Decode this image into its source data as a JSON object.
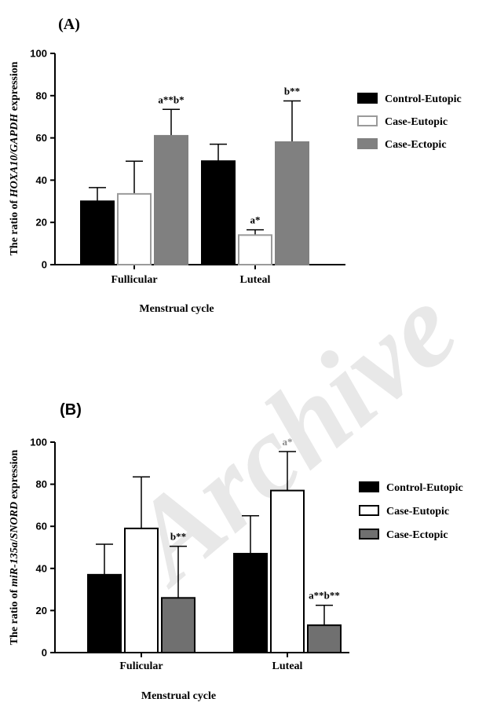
{
  "watermark": "Archive",
  "chart_data": [
    {
      "type": "bar",
      "panel_label": "(A)",
      "categories": [
        "Fullicular",
        "Luteal"
      ],
      "xlabel": "Menstrual cycle",
      "ylabel_parts": [
        "The ratio of ",
        "HOXA10/GAPDH",
        " expression"
      ],
      "ylim": [
        0,
        100
      ],
      "yticks": [
        0,
        20,
        40,
        60,
        80,
        100
      ],
      "legend_position": "right",
      "series": [
        {
          "name": "Control-Eutopic",
          "values": [
            30,
            49
          ],
          "errors": [
            6.5,
            8
          ],
          "fill": "#000000",
          "stroke": "#000000"
        },
        {
          "name": "Case-Eutopic",
          "values": [
            33.5,
            14
          ],
          "errors": [
            15.5,
            2.5
          ],
          "fill": "#ffffff",
          "stroke": "#9a9a9a"
        },
        {
          "name": "Case-Ectopic",
          "values": [
            61,
            58
          ],
          "errors": [
            12.5,
            19.5
          ],
          "fill": "#808080",
          "stroke": "#808080"
        }
      ],
      "annotations": [
        {
          "category": 0,
          "series": 2,
          "text": "a**b*",
          "color": "#000000"
        },
        {
          "category": 1,
          "series": 1,
          "text": "a*",
          "color": "#000000"
        },
        {
          "category": 1,
          "series": 2,
          "text": "b**",
          "color": "#000000"
        }
      ]
    },
    {
      "type": "bar",
      "panel_label": "(B)",
      "categories": [
        "Fulicular",
        "Luteal"
      ],
      "xlabel": "Menstrual cycle",
      "ylabel_parts": [
        "The ratio of ",
        "miR-135a",
        "/",
        "SNORD",
        " expression"
      ],
      "ylim": [
        0,
        100
      ],
      "yticks": [
        0,
        20,
        40,
        60,
        80,
        100
      ],
      "legend_position": "right",
      "series": [
        {
          "name": "Control-Eutopic",
          "values": [
            37,
            47
          ],
          "errors": [
            14.5,
            18
          ],
          "fill": "#000000",
          "stroke": "#000000"
        },
        {
          "name": "Case-Eutopic",
          "values": [
            59,
            77
          ],
          "errors": [
            24.5,
            18.5
          ],
          "fill": "#ffffff",
          "stroke": "#000000"
        },
        {
          "name": "Case-Ectopic",
          "values": [
            26,
            13
          ],
          "errors": [
            24.5,
            9.5
          ],
          "fill": "#707070",
          "stroke": "#000000"
        }
      ],
      "annotations": [
        {
          "category": 0,
          "series": 2,
          "text": "b**",
          "color": "#000000"
        },
        {
          "category": 1,
          "series": 1,
          "text": "a*",
          "color": "#8a8a8a"
        },
        {
          "category": 1,
          "series": 2,
          "text": "a**b**",
          "color": "#000000"
        }
      ]
    }
  ]
}
